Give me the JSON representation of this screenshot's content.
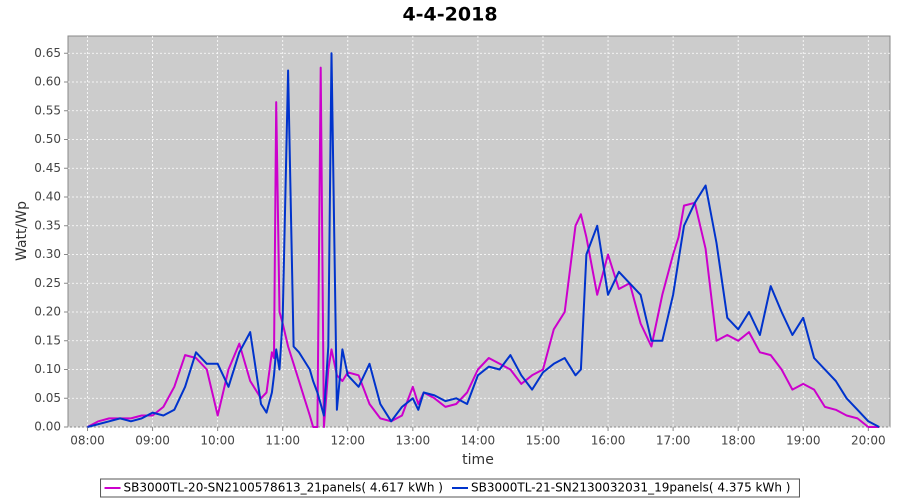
{
  "chart_data": {
    "type": "line",
    "title": "4-4-2018",
    "x_label": "time",
    "y_label": "Watt/Wp",
    "x": [
      "08:00",
      "08:10",
      "08:20",
      "08:30",
      "08:40",
      "08:50",
      "09:00",
      "09:10",
      "09:20",
      "09:30",
      "09:40",
      "09:50",
      "10:00",
      "10:10",
      "10:20",
      "10:30",
      "10:40",
      "10:45",
      "10:50",
      "10:52",
      "10:54",
      "10:57",
      "11:00",
      "11:05",
      "11:10",
      "11:15",
      "11:20",
      "11:25",
      "11:28",
      "11:32",
      "11:35",
      "11:38",
      "11:42",
      "11:45",
      "11:50",
      "11:55",
      "12:00",
      "12:10",
      "12:20",
      "12:30",
      "12:40",
      "12:50",
      "13:00",
      "13:05",
      "13:10",
      "13:20",
      "13:30",
      "13:40",
      "13:50",
      "14:00",
      "14:10",
      "14:20",
      "14:30",
      "14:40",
      "14:50",
      "15:00",
      "15:10",
      "15:20",
      "15:30",
      "15:35",
      "15:40",
      "15:50",
      "16:00",
      "16:10",
      "16:20",
      "16:30",
      "16:40",
      "16:50",
      "17:00",
      "17:05",
      "17:10",
      "17:20",
      "17:30",
      "17:40",
      "17:50",
      "18:00",
      "18:10",
      "18:20",
      "18:30",
      "18:40",
      "18:50",
      "19:00",
      "19:10",
      "19:20",
      "19:30",
      "19:40",
      "19:50",
      "20:00",
      "20:10"
    ],
    "series": [
      {
        "name": "SB3000TL-20-SN2100578613_21panels( 4.617 kWh )",
        "color": "#cc00cc",
        "values": [
          0,
          0.01,
          0.015,
          0.015,
          0.015,
          0.02,
          0.02,
          0.035,
          0.07,
          0.125,
          0.12,
          0.1,
          0.02,
          0.1,
          0.145,
          0.08,
          0.05,
          0.06,
          0.13,
          0.12,
          0.565,
          0.2,
          0.18,
          0.14,
          0.11,
          0.08,
          0.05,
          0.02,
          0,
          0,
          0.625,
          0,
          0.1,
          0.135,
          0.09,
          0.08,
          0.095,
          0.09,
          0.04,
          0.015,
          0.01,
          0.02,
          0.07,
          0.04,
          0.06,
          0.05,
          0.035,
          0.04,
          0.06,
          0.1,
          0.12,
          0.11,
          0.1,
          0.075,
          0.09,
          0.1,
          0.17,
          0.2,
          0.35,
          0.37,
          0.33,
          0.23,
          0.3,
          0.24,
          0.25,
          0.18,
          0.14,
          0.23,
          0.3,
          0.33,
          0.385,
          0.39,
          0.31,
          0.15,
          0.16,
          0.15,
          0.165,
          0.13,
          0.125,
          0.1,
          0.065,
          0.075,
          0.065,
          0.035,
          0.03,
          0.02,
          0.015,
          0,
          0
        ]
      },
      {
        "name": "SB3000TL-21-SN2130032031_19panels( 4.375 kWh )",
        "color": "#0033cc",
        "values": [
          0,
          0.005,
          0.01,
          0.015,
          0.01,
          0.015,
          0.025,
          0.02,
          0.03,
          0.07,
          0.13,
          0.11,
          0.11,
          0.07,
          0.13,
          0.165,
          0.04,
          0.025,
          0.06,
          0.09,
          0.135,
          0.1,
          0.19,
          0.62,
          0.14,
          0.13,
          0.115,
          0.1,
          0.08,
          0.06,
          0.04,
          0.02,
          0.14,
          0.65,
          0.03,
          0.135,
          0.09,
          0.07,
          0.11,
          0.04,
          0.01,
          0.035,
          0.05,
          0.03,
          0.06,
          0.055,
          0.045,
          0.05,
          0.04,
          0.09,
          0.105,
          0.1,
          0.125,
          0.09,
          0.065,
          0.095,
          0.11,
          0.12,
          0.09,
          0.1,
          0.3,
          0.35,
          0.23,
          0.27,
          0.25,
          0.23,
          0.15,
          0.15,
          0.23,
          0.29,
          0.35,
          0.39,
          0.42,
          0.32,
          0.19,
          0.17,
          0.2,
          0.16,
          0.245,
          0.2,
          0.16,
          0.19,
          0.12,
          0.1,
          0.08,
          0.05,
          0.03,
          0.01,
          0
        ]
      }
    ],
    "xlim": [
      "07:42",
      "20:20"
    ],
    "xticks": [
      "08:00",
      "09:00",
      "10:00",
      "11:00",
      "12:00",
      "13:00",
      "14:00",
      "15:00",
      "16:00",
      "17:00",
      "18:00",
      "19:00",
      "20:00"
    ],
    "ylim": [
      0,
      0.68
    ],
    "yticks": [
      {
        "value": 0,
        "label": "0.00"
      },
      0.05,
      {
        "value": 0.1,
        "label": "0.10"
      },
      0.15,
      {
        "value": 0.2,
        "label": "0.20"
      },
      0.25,
      {
        "value": 0.3,
        "label": "0.30"
      },
      0.35,
      {
        "value": 0.4,
        "label": "0.40"
      },
      0.45,
      {
        "value": 0.5,
        "label": "0.50"
      },
      0.55,
      {
        "value": 0.6,
        "label": "0.60"
      },
      0.65
    ],
    "grid": true,
    "legend": "bottom"
  }
}
